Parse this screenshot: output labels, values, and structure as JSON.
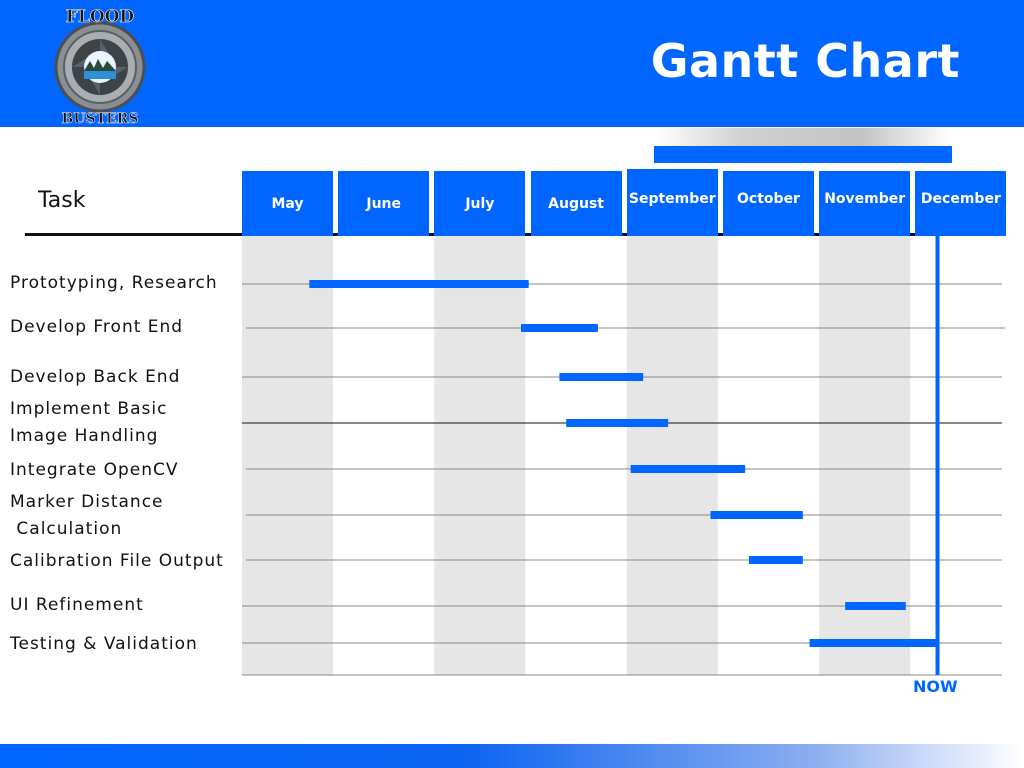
{
  "slide": {
    "title": "Gantt Chart"
  },
  "logo": {
    "text_top": "FLOOD",
    "text_bottom": "BUSTERS",
    "icon": "camera-shutter-icon"
  },
  "colors": {
    "accent": "#0066ff",
    "shade": "#e6e6e6",
    "line": "#666666"
  },
  "chart_data": {
    "type": "gantt",
    "title": "Gantt Chart",
    "task_header": "Task",
    "months": [
      "May",
      "June",
      "July",
      "August",
      "September",
      "October",
      "November",
      "December"
    ],
    "tasks": [
      {
        "label": "Prototyping, Research",
        "start": 0.7,
        "end": 2.98
      },
      {
        "label": "Develop Front End",
        "start": 2.9,
        "end": 3.7
      },
      {
        "label": "Develop Back End",
        "start": 3.3,
        "end": 4.17
      },
      {
        "label": "Implement Basic\nImage Handling",
        "start": 3.37,
        "end": 4.43
      },
      {
        "label": "Integrate OpenCV",
        "start": 4.04,
        "end": 5.23
      },
      {
        "label": "Marker Distance\n Calculation",
        "start": 4.87,
        "end": 5.83
      },
      {
        "label": "Calibration File Output",
        "start": 5.27,
        "end": 5.83
      },
      {
        "label": "UI Refinement",
        "start": 6.27,
        "end": 6.9
      },
      {
        "label": "Testing & Validation",
        "start": 5.9,
        "end": 7.23
      }
    ],
    "now_label": "NOW",
    "now": 7.23,
    "grid": true
  }
}
